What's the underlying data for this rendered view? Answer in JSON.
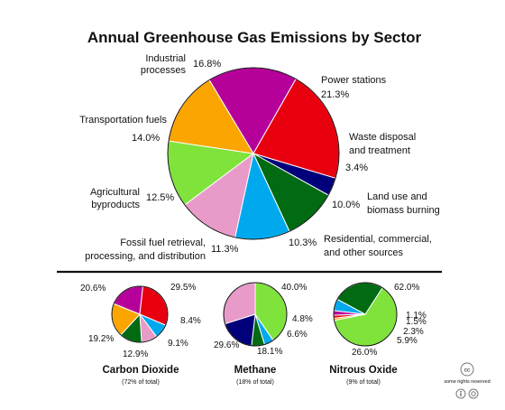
{
  "colors": {
    "industrial": "#b5009a",
    "power": "#e8000f",
    "waste": "#00007a",
    "landuse": "#006b12",
    "residential": "#00a9ee",
    "fossil": "#e89ac8",
    "agricultural": "#7fe33c",
    "transport": "#fba500",
    "divider": "#111111"
  },
  "chart_data": [
    {
      "type": "pie",
      "title": "Annual Greenhouse Gas Emissions by Sector",
      "slices": [
        {
          "key": "industrial",
          "label_line1": "Industrial",
          "label_line2": "processes",
          "value": 16.8,
          "value_label": "16.8%"
        },
        {
          "key": "power",
          "label_line1": "Power stations",
          "label_line2": "",
          "value": 21.3,
          "value_label": "21.3%"
        },
        {
          "key": "waste",
          "label_line1": "Waste disposal",
          "label_line2": "and treatment",
          "value": 3.4,
          "value_label": "3.4%"
        },
        {
          "key": "landuse",
          "label_line1": "Land use and",
          "label_line2": "biomass burning",
          "value": 10.0,
          "value_label": "10.0%"
        },
        {
          "key": "residential",
          "label_line1": "Residential, commercial,",
          "label_line2": "and other sources",
          "value": 10.3,
          "value_label": "10.3%"
        },
        {
          "key": "fossil",
          "label_line1": "Fossil fuel retrieval,",
          "label_line2": "processing, and distribution",
          "value": 11.3,
          "value_label": "11.3%"
        },
        {
          "key": "agricultural",
          "label_line1": "Agricultural",
          "label_line2": "byproducts",
          "value": 12.5,
          "value_label": "12.5%"
        },
        {
          "key": "transport",
          "label_line1": "Transportation fuels",
          "label_line2": "",
          "value": 14.0,
          "value_label": "14.0%"
        }
      ]
    },
    {
      "type": "pie",
      "title": "Carbon Dioxide",
      "subtitle": "(72% of total)",
      "slices": [
        {
          "key": "industrial",
          "value": 20.6,
          "value_label": "20.6%"
        },
        {
          "key": "power",
          "value": 29.5,
          "value_label": "29.5%"
        },
        {
          "key": "residential",
          "value": 8.4,
          "value_label": "8.4%"
        },
        {
          "key": "fossil",
          "value": 9.1,
          "value_label": "9.1%"
        },
        {
          "key": "landuse",
          "value": 12.9,
          "value_label": "12.9%"
        },
        {
          "key": "transport",
          "value": 19.2,
          "value_label": "19.2%"
        }
      ]
    },
    {
      "type": "pie",
      "title": "Methane",
      "subtitle": "(18% of total)",
      "slices": [
        {
          "key": "agricultural",
          "value": 40.0,
          "value_label": "40.0%"
        },
        {
          "key": "residential",
          "value": 4.8,
          "value_label": "4.8%"
        },
        {
          "key": "landuse",
          "value": 6.6,
          "value_label": "6.6%"
        },
        {
          "key": "waste",
          "value": 18.1,
          "value_label": "18.1%"
        },
        {
          "key": "fossil",
          "value": 29.6,
          "value_label": "29.6%"
        }
      ]
    },
    {
      "type": "pie",
      "title": "Nitrous Oxide",
      "subtitle": "(9% of total)",
      "slices": [
        {
          "key": "agricultural",
          "value": 62.0,
          "value_label": "62.0%"
        },
        {
          "key": "transport",
          "value": 1.1,
          "value_label": "1.1%"
        },
        {
          "key": "power",
          "value": 1.5,
          "value_label": "1.5%"
        },
        {
          "key": "industrial",
          "value": 2.3,
          "value_label": "2.3%"
        },
        {
          "key": "residential",
          "value": 5.9,
          "value_label": "5.9%"
        },
        {
          "key": "landuse",
          "value": 26.0,
          "value_label": "26.0%"
        }
      ]
    }
  ],
  "license": {
    "badge_text": "cc",
    "text": "some rights reserved"
  }
}
